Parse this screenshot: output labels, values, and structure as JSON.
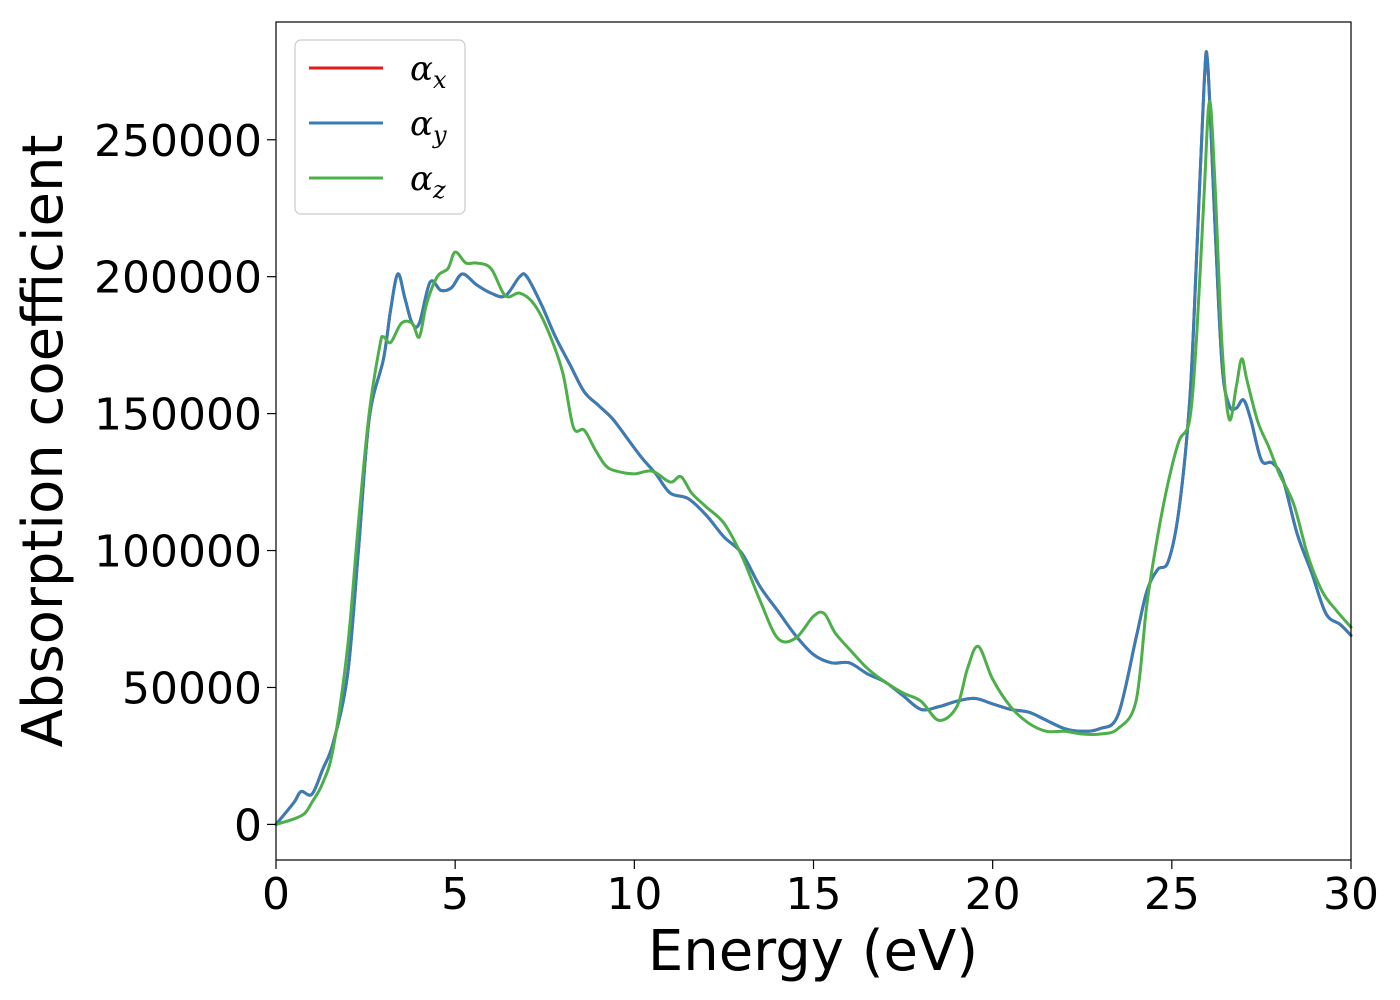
{
  "chart_data": {
    "type": "line",
    "xlabel": "Energy (eV)",
    "ylabel": "Absorption coefficient",
    "xlim": [
      0,
      30
    ],
    "ylim": [
      -13000,
      293000
    ],
    "xticks": [
      0,
      5,
      10,
      15,
      20,
      25,
      30
    ],
    "yticks": [
      0,
      50000,
      100000,
      150000,
      200000,
      250000
    ],
    "grid": false,
    "legend_position": "upper-left",
    "series": [
      {
        "name": "α",
        "subscript": "x",
        "color": "#e41a1c",
        "x": [
          0,
          0.5,
          0.7,
          1.0,
          1.3,
          1.6,
          2.0,
          2.3,
          2.6,
          3.0,
          3.2,
          3.4,
          3.6,
          3.8,
          4.0,
          4.3,
          4.6,
          4.9,
          5.2,
          5.6,
          6.0,
          6.4,
          6.8,
          7.0,
          7.4,
          7.8,
          8.2,
          8.6,
          9.0,
          9.4,
          9.8,
          10.2,
          10.6,
          11.0,
          11.5,
          12.0,
          12.5,
          13.0,
          13.5,
          14.0,
          14.5,
          15.0,
          15.5,
          16.0,
          16.5,
          17.0,
          17.5,
          18.0,
          18.5,
          19.0,
          19.5,
          20.0,
          20.5,
          21.0,
          21.5,
          22.0,
          22.5,
          23.0,
          23.5,
          24.0,
          24.3,
          24.6,
          24.9,
          25.2,
          25.5,
          25.7,
          25.9,
          26.0,
          26.2,
          26.4,
          26.6,
          26.8,
          27.0,
          27.2,
          27.5,
          27.8,
          28.1,
          28.5,
          28.9,
          29.3,
          29.7,
          30.0
        ],
        "y": [
          0,
          8000,
          12000,
          11000,
          20000,
          30000,
          55000,
          100000,
          148000,
          170000,
          188000,
          201000,
          192000,
          183000,
          183000,
          198000,
          195000,
          196000,
          201000,
          197000,
          194000,
          193000,
          200000,
          200000,
          190000,
          178000,
          168000,
          158000,
          153000,
          148000,
          141000,
          134000,
          128000,
          121000,
          119000,
          113000,
          105000,
          99000,
          87000,
          78000,
          69000,
          62000,
          59000,
          59000,
          55000,
          52000,
          47000,
          42000,
          43000,
          45000,
          46000,
          44000,
          42000,
          41000,
          38000,
          35000,
          34000,
          35000,
          40000,
          68000,
          85000,
          93000,
          96000,
          115000,
          155000,
          210000,
          270000,
          278000,
          220000,
          168000,
          153000,
          152000,
          155000,
          148000,
          133000,
          132000,
          126000,
          106000,
          92000,
          77000,
          73000,
          69000
        ]
      },
      {
        "name": "α",
        "subscript": "y",
        "color": "#377eb8",
        "x": [
          0,
          0.5,
          0.7,
          1.0,
          1.3,
          1.6,
          2.0,
          2.3,
          2.6,
          3.0,
          3.2,
          3.4,
          3.6,
          3.8,
          4.0,
          4.3,
          4.6,
          4.9,
          5.2,
          5.6,
          6.0,
          6.4,
          6.8,
          7.0,
          7.4,
          7.8,
          8.2,
          8.6,
          9.0,
          9.4,
          9.8,
          10.2,
          10.6,
          11.0,
          11.5,
          12.0,
          12.5,
          13.0,
          13.5,
          14.0,
          14.5,
          15.0,
          15.5,
          16.0,
          16.5,
          17.0,
          17.5,
          18.0,
          18.5,
          19.0,
          19.5,
          20.0,
          20.5,
          21.0,
          21.5,
          22.0,
          22.5,
          23.0,
          23.5,
          24.0,
          24.3,
          24.6,
          24.9,
          25.2,
          25.5,
          25.7,
          25.9,
          26.0,
          26.2,
          26.4,
          26.6,
          26.8,
          27.0,
          27.2,
          27.5,
          27.8,
          28.1,
          28.5,
          28.9,
          29.3,
          29.7,
          30.0
        ],
        "y": [
          0,
          8000,
          12000,
          11000,
          20000,
          30000,
          55000,
          100000,
          148000,
          170000,
          188000,
          201000,
          192000,
          183000,
          183000,
          198000,
          195000,
          196000,
          201000,
          197000,
          194000,
          193000,
          200000,
          200000,
          190000,
          178000,
          168000,
          158000,
          153000,
          148000,
          141000,
          134000,
          128000,
          121000,
          119000,
          113000,
          105000,
          99000,
          87000,
          78000,
          69000,
          62000,
          59000,
          59000,
          55000,
          52000,
          47000,
          42000,
          43000,
          45000,
          46000,
          44000,
          42000,
          41000,
          38000,
          35000,
          34000,
          35000,
          40000,
          68000,
          85000,
          93000,
          96000,
          115000,
          155000,
          210000,
          270000,
          278000,
          220000,
          168000,
          153000,
          152000,
          155000,
          148000,
          133000,
          132000,
          126000,
          106000,
          92000,
          77000,
          73000,
          69000
        ]
      },
      {
        "name": "α",
        "subscript": "z",
        "color": "#4daf4a",
        "x": [
          0,
          0.5,
          0.8,
          1.0,
          1.3,
          1.6,
          2.0,
          2.3,
          2.6,
          2.9,
          3.0,
          3.2,
          3.5,
          3.8,
          4.0,
          4.2,
          4.5,
          4.8,
          5.0,
          5.3,
          5.6,
          6.0,
          6.4,
          6.8,
          7.2,
          7.6,
          8.0,
          8.3,
          8.6,
          8.9,
          9.2,
          9.5,
          10.0,
          10.5,
          11.0,
          11.3,
          11.6,
          12.0,
          12.5,
          13.0,
          13.5,
          14.0,
          14.5,
          15.0,
          15.3,
          15.6,
          16.0,
          16.5,
          17.0,
          17.5,
          18.0,
          18.5,
          19.0,
          19.3,
          19.6,
          20.0,
          20.5,
          21.0,
          21.5,
          22.0,
          22.5,
          23.0,
          23.5,
          24.0,
          24.3,
          24.6,
          24.9,
          25.2,
          25.5,
          25.7,
          25.9,
          26.05,
          26.2,
          26.4,
          26.6,
          26.8,
          26.95,
          27.1,
          27.4,
          27.7,
          28.0,
          28.4,
          28.8,
          29.2,
          29.6,
          30.0
        ],
        "y": [
          0,
          2000,
          4000,
          8000,
          15000,
          28000,
          65000,
          110000,
          150000,
          175000,
          178000,
          176000,
          183000,
          183000,
          178000,
          190000,
          200000,
          203000,
          209000,
          205000,
          205000,
          203000,
          193000,
          194000,
          190000,
          180000,
          165000,
          145000,
          144000,
          137000,
          131000,
          129000,
          128000,
          129000,
          125000,
          127000,
          121000,
          116000,
          110000,
          98000,
          82000,
          68000,
          68000,
          76000,
          77000,
          70000,
          64000,
          57000,
          52000,
          48000,
          45000,
          38000,
          43000,
          57000,
          65000,
          53000,
          43000,
          37000,
          34000,
          34000,
          33000,
          33000,
          35000,
          45000,
          80000,
          105000,
          125000,
          140000,
          148000,
          180000,
          230000,
          264000,
          235000,
          175000,
          148000,
          160000,
          170000,
          162000,
          147000,
          138000,
          128000,
          117000,
          98000,
          85000,
          78000,
          72000
        ]
      }
    ]
  }
}
